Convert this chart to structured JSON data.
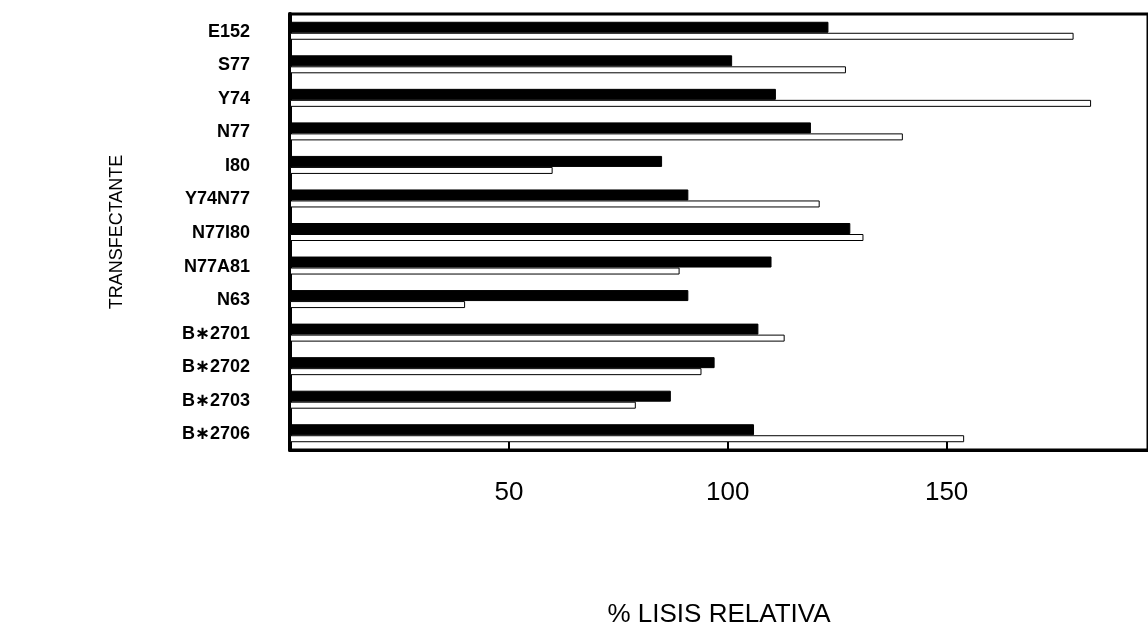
{
  "chart_data": {
    "type": "bar",
    "orientation": "horizontal",
    "xlabel": "% LISIS RELATIVA",
    "ylabel": "TRANSFECTANTE",
    "categories": [
      "E152",
      "S77",
      "Y74",
      "N77",
      "I80",
      "Y74N77",
      "N77I80",
      "N77A81",
      "N63",
      "B∗2701",
      "B∗2702",
      "B∗2703",
      "B∗2706"
    ],
    "series": [
      {
        "color": "#000000",
        "values": [
          123,
          101,
          111,
          119,
          85,
          91,
          128,
          110,
          91,
          107,
          97,
          87,
          106
        ]
      },
      {
        "color": "#ffffff",
        "values": [
          179,
          127,
          183,
          140,
          60,
          121,
          131,
          89,
          40,
          113,
          94,
          79,
          154
        ]
      }
    ],
    "xlim": [
      0,
      196
    ],
    "xticks": [
      50,
      100,
      150
    ],
    "grid": false
  }
}
